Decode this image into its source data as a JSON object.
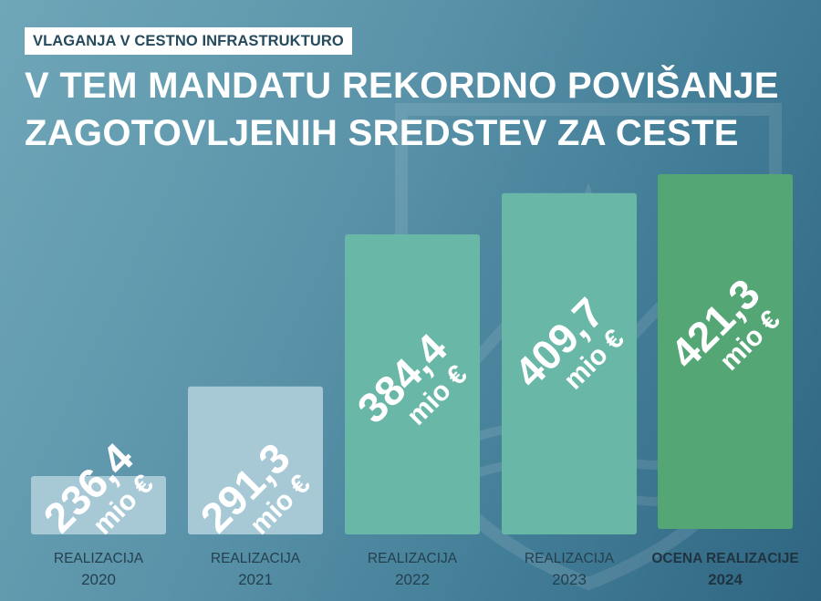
{
  "header": {
    "tag": "VLAGANJA V CESTNO INFRASTRUKTURO",
    "title_line1": "V TEM MANDATU REKORDNO POVIŠANJE",
    "title_line2": "ZAGOTOVLJENIH SREDSTEV ZA CESTE"
  },
  "chart_data": {
    "type": "bar",
    "title": "V TEM MANDATU REKORDNO POVIŠANJE ZAGOTOVLJENIH SREDSTEV ZA CESTE",
    "unit": "mio €",
    "categories": [
      "2020",
      "2021",
      "2022",
      "2023",
      "2024"
    ],
    "category_labels": [
      "REALIZACIJA",
      "REALIZACIJA",
      "REALIZACIJA",
      "REALIZACIJA",
      "OCENA REALIZACIJE"
    ],
    "values": [
      236.4,
      291.3,
      384.4,
      409.7,
      421.3
    ],
    "value_labels": [
      "236,4",
      "291,3",
      "384,4",
      "409,7",
      "421,3"
    ],
    "bar_colors": [
      "#a7c9d6",
      "#a7c9d6",
      "#69b7a7",
      "#69b7a7",
      "#54a675"
    ],
    "highlight_index": 4,
    "grid": false,
    "legend": "none"
  }
}
